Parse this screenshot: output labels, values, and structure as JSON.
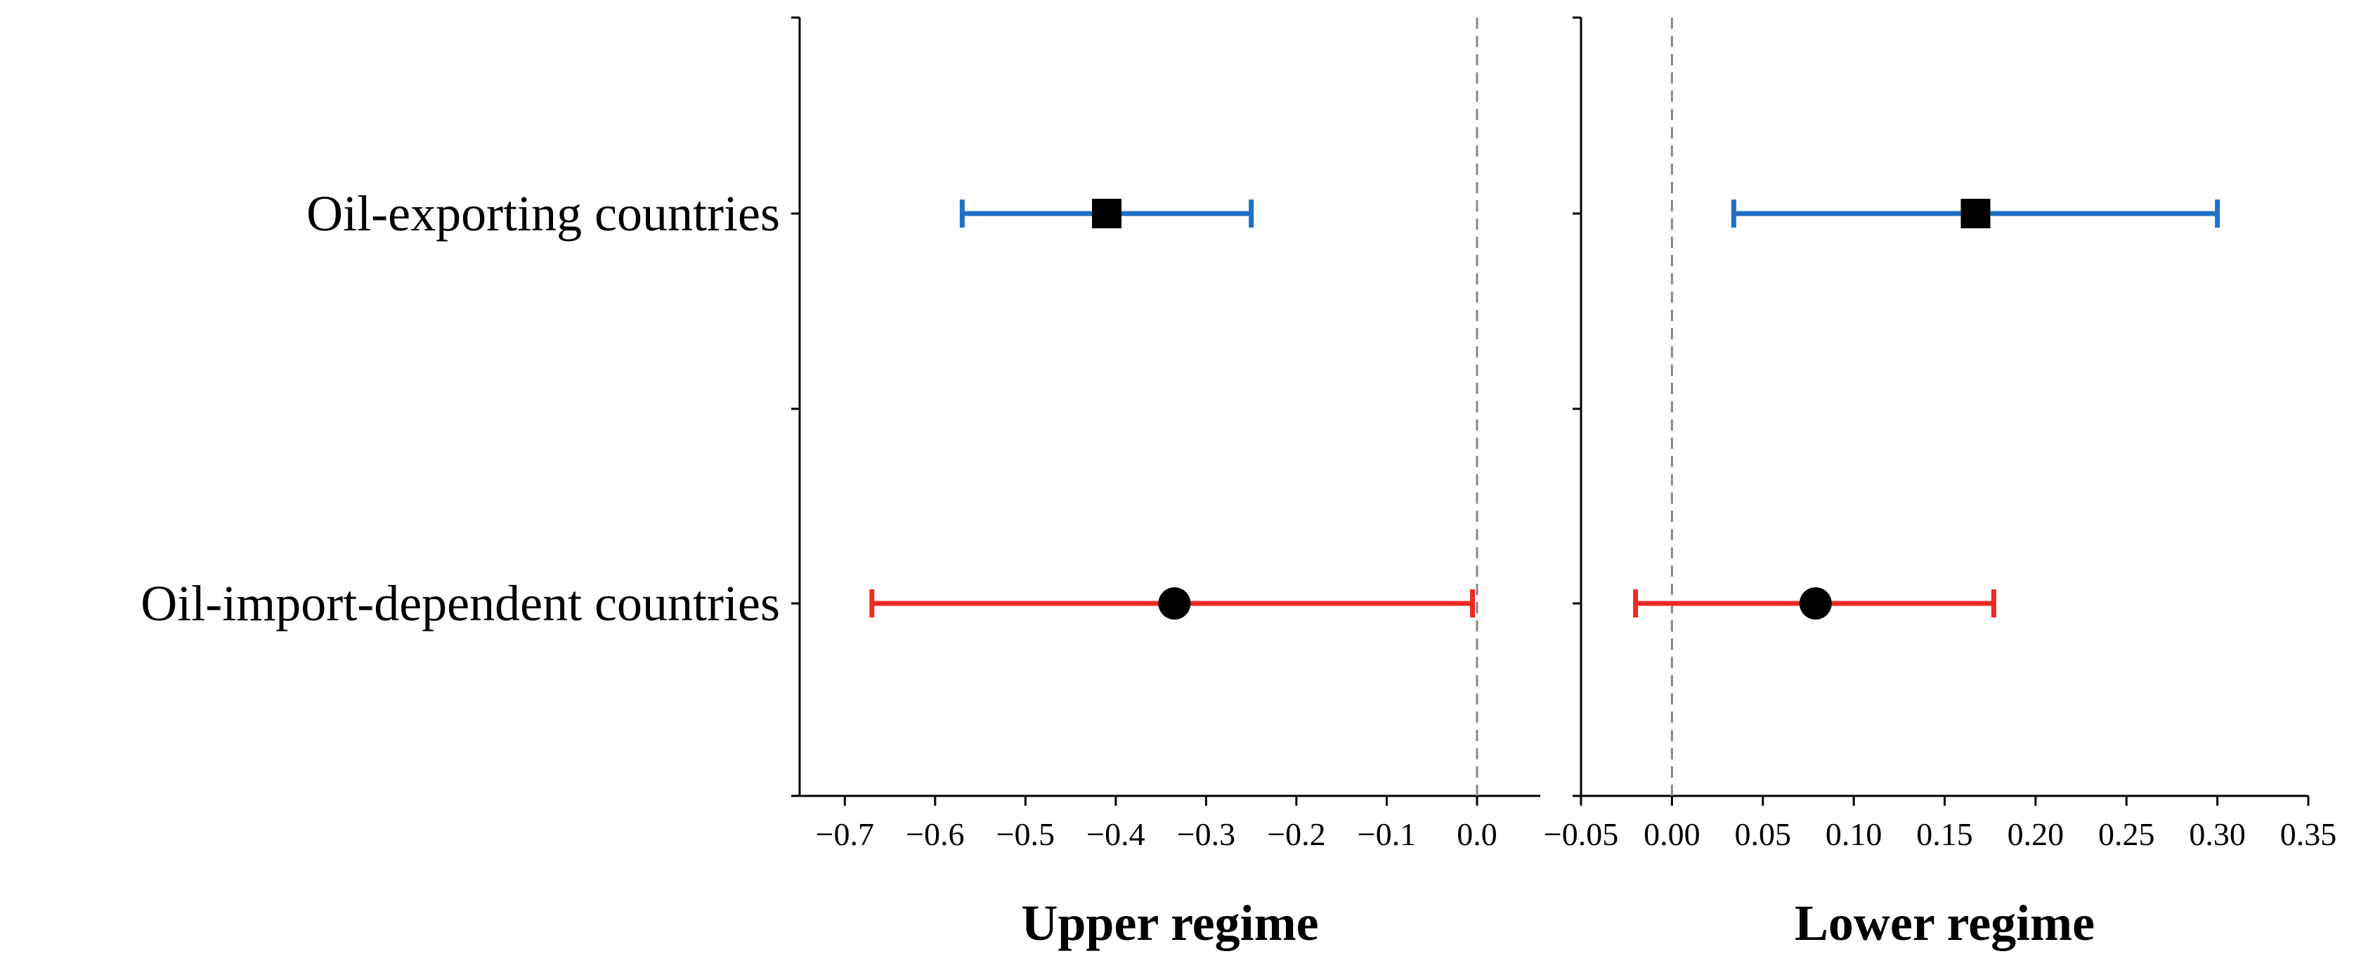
{
  "chart_data": [
    {
      "type": "errorbar",
      "xlabel": "Upper regime",
      "categories": [
        "Oil-exporting countries",
        "Oil-import-dependent countries"
      ],
      "xlim": [
        -0.75,
        0.07
      ],
      "xticks": [
        -0.7,
        -0.6,
        -0.5,
        -0.4,
        -0.3,
        -0.2,
        -0.1,
        0.0
      ],
      "xtick_labels": [
        "−0.7",
        "−0.6",
        "−0.5",
        "−0.4",
        "−0.3",
        "−0.2",
        "−0.1",
        "0.0"
      ],
      "reference_line": 0.0,
      "series": [
        {
          "category": "Oil-exporting countries",
          "estimate": -0.41,
          "lower": -0.57,
          "upper": -0.25,
          "color": "#1f6fc5",
          "marker": "square"
        },
        {
          "category": "Oil-import-dependent countries",
          "estimate": -0.335,
          "lower": -0.67,
          "upper": -0.005,
          "color": "#ee2a24",
          "marker": "circle"
        }
      ]
    },
    {
      "type": "errorbar",
      "xlabel": "Lower regime",
      "categories": [
        "Oil-exporting countries",
        "Oil-import-dependent countries"
      ],
      "xlim": [
        -0.05,
        0.35
      ],
      "xticks": [
        -0.05,
        0.0,
        0.05,
        0.1,
        0.15,
        0.2,
        0.25,
        0.3,
        0.35
      ],
      "xtick_labels": [
        "−0.05",
        "0.00",
        "0.05",
        "0.10",
        "0.15",
        "0.20",
        "0.25",
        "0.30",
        "0.35"
      ],
      "reference_line": 0.0,
      "series": [
        {
          "category": "Oil-exporting countries",
          "estimate": 0.167,
          "lower": 0.034,
          "upper": 0.3,
          "color": "#1f6fc5",
          "marker": "square"
        },
        {
          "category": "Oil-import-dependent countries",
          "estimate": 0.079,
          "lower": -0.02,
          "upper": 0.177,
          "color": "#ee2a24",
          "marker": "circle"
        }
      ]
    }
  ]
}
